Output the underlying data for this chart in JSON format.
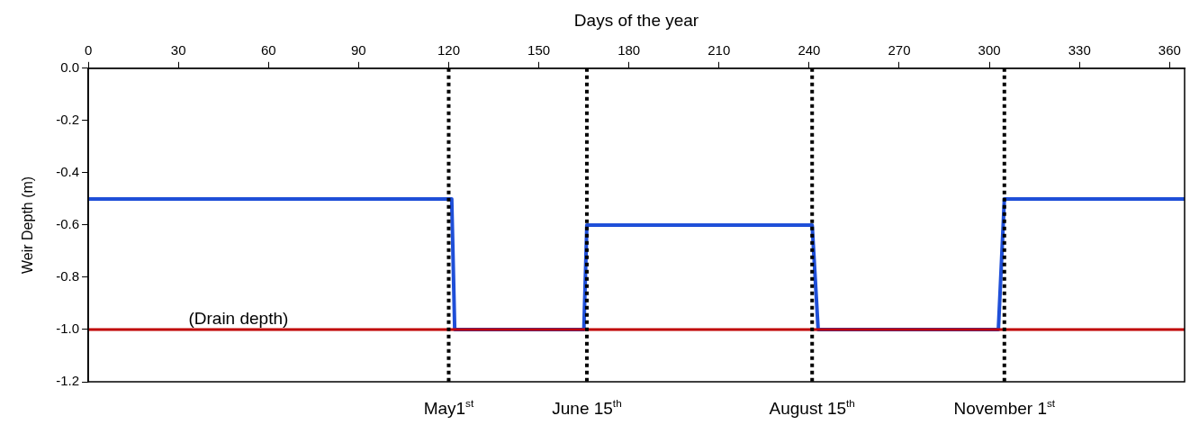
{
  "chart_data": {
    "type": "line",
    "xlabel": "Days of the year",
    "ylabel": "Weir Depth (m)",
    "xlim": [
      0,
      365
    ],
    "xticks": [
      0,
      30,
      60,
      90,
      120,
      150,
      180,
      210,
      240,
      270,
      300,
      330,
      360
    ],
    "ylim": [
      -1.2,
      0
    ],
    "yticks": [
      {
        "value": 0,
        "label": "0.0"
      },
      {
        "value": -0.2,
        "label": "-0.2"
      },
      {
        "value": -0.4,
        "label": "-0.4"
      },
      {
        "value": -0.6,
        "label": "-0.6"
      },
      {
        "value": -0.8,
        "label": "-0.8"
      },
      {
        "value": -1,
        "label": "-1.0"
      },
      {
        "value": -1.2,
        "label": "-1.2"
      }
    ],
    "series": [
      {
        "color": "#1f4fd8",
        "x": [
          0,
          121,
          122,
          165,
          166,
          241,
          243,
          303,
          305,
          365
        ],
        "values": [
          -0.5,
          -0.5,
          -1.0,
          -1.0,
          -0.6,
          -0.6,
          -1.0,
          -1.0,
          -0.5,
          -0.5
        ]
      },
      {
        "color": "#c00000",
        "x": [
          0,
          365
        ],
        "values": [
          -1.0,
          -1.0
        ]
      }
    ],
    "annotations": [
      {
        "text": "(Drain depth)",
        "x": 50,
        "y": -1.0
      }
    ],
    "ref_lines": [
      {
        "axis": "x",
        "value": 120,
        "label": "May1$^{st}$",
        "color": "#000000",
        "line_style": "dotted"
      },
      {
        "axis": "x",
        "value": 166,
        "label": "June 15$^{th}$",
        "color": "#000000",
        "line_style": "dotted"
      },
      {
        "axis": "x",
        "value": 241,
        "label": "August 15$^{th}$",
        "color": "#000000",
        "line_style": "dotted"
      },
      {
        "axis": "x",
        "value": 305,
        "label": "November 1$^{st}$",
        "color": "#000000",
        "line_style": "dotted"
      }
    ]
  }
}
